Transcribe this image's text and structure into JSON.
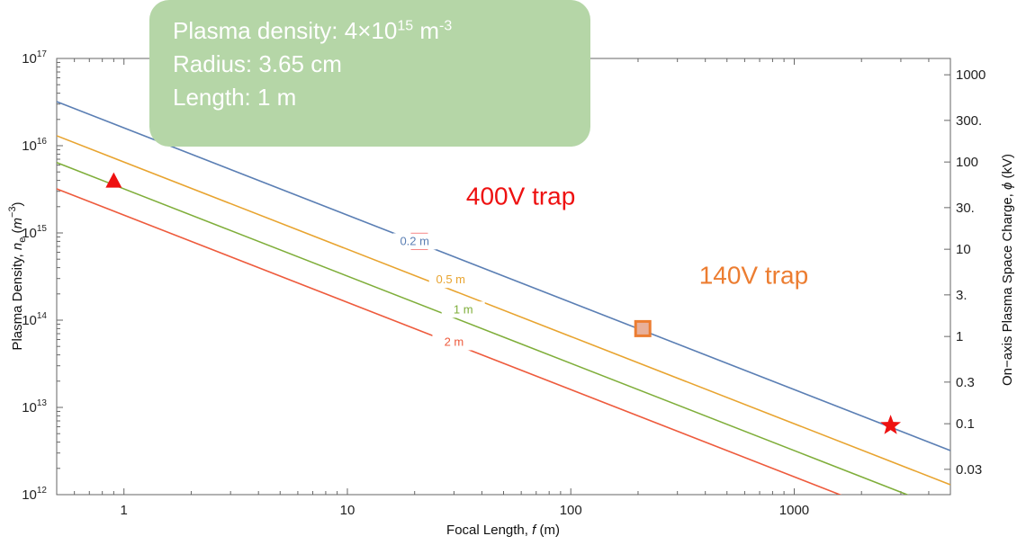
{
  "chart_data": {
    "type": "line",
    "x_scale": "log",
    "y_scale": "log",
    "xlim": [
      0.5,
      5000
    ],
    "ylim": [
      1000000000000.0,
      1e+17
    ],
    "xlabel": "Focal Length, f (m)",
    "ylabel": "Plasma Density, n_e (m^-3)",
    "y2label": "On-axis Plasma Space Charge, ϕ (kV)",
    "x_ticks": [
      {
        "value": 1,
        "label": "1"
      },
      {
        "value": 10,
        "label": "10"
      },
      {
        "value": 100,
        "label": "100"
      },
      {
        "value": 1000,
        "label": "1000"
      }
    ],
    "y_ticks": [
      {
        "exp": 12,
        "label": "10"
      },
      {
        "exp": 13,
        "label": "10"
      },
      {
        "exp": 14,
        "label": "10"
      },
      {
        "exp": 15,
        "label": "10"
      },
      {
        "exp": 16,
        "label": "10"
      },
      {
        "exp": 17,
        "label": "10"
      }
    ],
    "y2_ticks": [
      {
        "kv": 1000,
        "label": "1000"
      },
      {
        "kv": 300,
        "label": "300."
      },
      {
        "kv": 100,
        "label": "100"
      },
      {
        "kv": 30,
        "label": "30."
      },
      {
        "kv": 10,
        "label": "10"
      },
      {
        "kv": 3,
        "label": "3."
      },
      {
        "kv": 1,
        "label": "1"
      },
      {
        "kv": 0.3,
        "label": "0.3"
      },
      {
        "kv": 0.1,
        "label": "0.1"
      },
      {
        "kv": 0.03,
        "label": "0.03"
      }
    ],
    "series": [
      {
        "name": "0.2 m",
        "color": "#5b7fb4",
        "points": [
          [
            0.5,
            3.2e+16
          ],
          [
            5000,
            3200000000000.0
          ]
        ],
        "label_at": [
          20,
          800000000000000.0
        ]
      },
      {
        "name": "0.5 m",
        "color": "#e8a430",
        "points": [
          [
            0.5,
            1.3e+16
          ],
          [
            5000,
            1300000000000.0
          ]
        ],
        "label_at": [
          29,
          290000000000000.0
        ]
      },
      {
        "name": "1 m",
        "color": "#7fae3a",
        "points": [
          [
            0.5,
            6400000000000000.0
          ],
          [
            5000,
            640000000000.0
          ]
        ],
        "label_at": [
          33,
          132000000000000.0
        ]
      },
      {
        "name": "2 m",
        "color": "#ee5b3d",
        "points": [
          [
            0.5,
            3200000000000000.0
          ],
          [
            5000,
            320000000000.0
          ]
        ],
        "label_at": [
          30,
          56000000000000.0
        ]
      }
    ],
    "markers": [
      {
        "shape": "triangle",
        "x": 0.9,
        "y": 3900000000000000.0,
        "color": "#ee1111"
      },
      {
        "shape": "square",
        "x": 21,
        "y": 800000000000000.0,
        "color": "#ee1111",
        "fill": "#e8a0a8"
      },
      {
        "shape": "square",
        "x": 210,
        "y": 80000000000000.0,
        "color": "#ec7d31",
        "fill": "#e8b09a"
      },
      {
        "shape": "star",
        "x": 2700,
        "y": 6200000000000.0,
        "color": "#ee1111"
      }
    ],
    "annotations": [
      {
        "text": "400V trap",
        "color": "#ee1111",
        "x": 34,
        "y": 2100000000000000.0
      },
      {
        "text": "140V trap",
        "color": "#ec7d31",
        "x": 375,
        "y": 260000000000000.0
      }
    ]
  },
  "infobox": {
    "line1_prefix": "Plasma density: 4×10",
    "line1_exp": "15",
    "line1_unit": " m",
    "line1_unit_exp": "-3",
    "line2": "Radius: 3.65 cm",
    "line3": "Length: 1 m"
  },
  "colors": {
    "red": "#ee1111",
    "orange": "#ec7d31",
    "box": "#b5d6a7"
  }
}
